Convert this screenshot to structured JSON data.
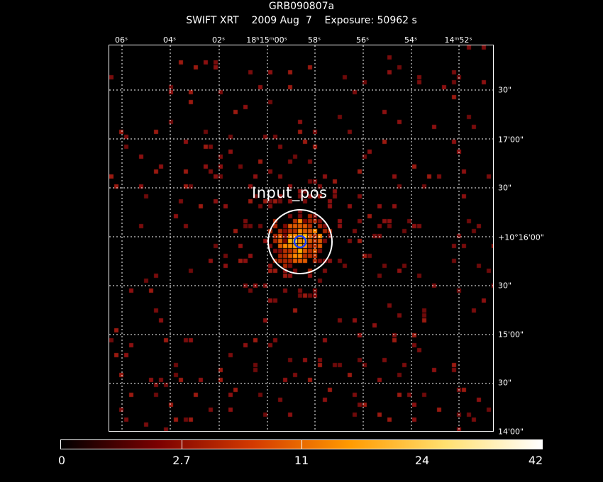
{
  "header": {
    "title_line1": "GRB090807a",
    "title_line2": "SWIFT XRT    2009 Aug  7    Exposure: 50962 s"
  },
  "ra_axis": {
    "labels": [
      "06ˢ",
      "04ˢ",
      "02ˢ",
      "18ʰ15ᵐ00ˢ",
      "58ˢ",
      "56ˢ",
      "54ˢ",
      "14ᵐ52ˢ"
    ]
  },
  "dec_axis": {
    "labels": [
      "30\"",
      "17'00\"",
      "30\"",
      "+10°16'00\"",
      "30\"",
      "15'00\"",
      "30\"",
      "14'00\""
    ]
  },
  "overlay": {
    "source_label": "Input_pos",
    "outer_circle_color": "#ffffff",
    "inner_circle_color": "#1a3cff"
  },
  "colorbar": {
    "labels": [
      "0",
      "2.7",
      "11",
      "24",
      "42"
    ],
    "colors": [
      "#000000",
      "#7a0000",
      "#d43a00",
      "#ff9a00",
      "#ffe070",
      "#ffffff"
    ]
  },
  "colors": {
    "background": "#000000",
    "grid": "#ffffff",
    "faint_pixel": "#8b1010"
  }
}
